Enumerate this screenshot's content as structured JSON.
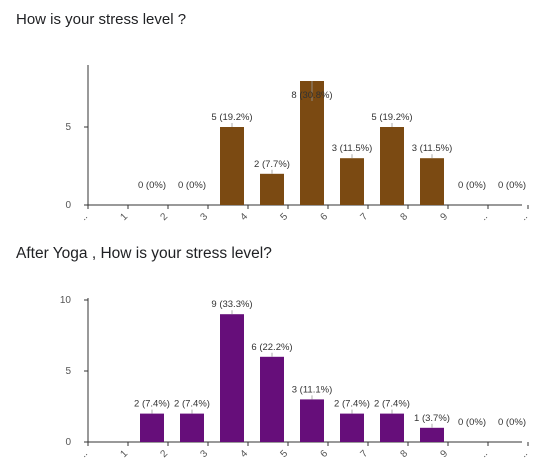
{
  "chart_data": [
    {
      "type": "bar",
      "title": "How is your stress level ?",
      "categories": [
        "..",
        "1",
        "2",
        "3",
        "4",
        "5",
        "6",
        "7",
        "8",
        "9",
        "..",
        ".."
      ],
      "values": [
        null,
        0,
        0,
        5,
        2,
        8,
        3,
        5,
        3,
        0,
        0,
        null
      ],
      "data_labels": [
        null,
        "0 (0%)",
        "0 (0%)",
        "5 (19.2%)",
        "2 (7.7%)",
        "8 (30.8%)",
        "3 (11.5%)",
        "5 (19.2%)",
        "3 (11.5%)",
        "0 (0%)",
        "0 (0%)",
        null
      ],
      "y_ticks": [
        0,
        5
      ],
      "ylim": [
        0,
        8
      ],
      "bar_color": "#7b4a12",
      "grid": false
    },
    {
      "type": "bar",
      "title": "After Yoga , How is your stress level?",
      "categories": [
        "..",
        "1",
        "2",
        "3",
        "4",
        "5",
        "6",
        "7",
        "8",
        "9",
        "..",
        ".."
      ],
      "values": [
        null,
        2,
        2,
        9,
        6,
        3,
        2,
        2,
        1,
        0,
        0,
        null
      ],
      "data_labels": [
        null,
        "2 (7.4%)",
        "2 (7.4%)",
        "9 (33.3%)",
        "6 (22.2%)",
        "3 (11.1%)",
        "2 (7.4%)",
        "2 (7.4%)",
        "1 (3.7%)",
        "0 (0%)",
        "0 (0%)",
        null
      ],
      "y_ticks": [
        0,
        5,
        10
      ],
      "ylim": [
        0,
        9
      ],
      "bar_color": "#660e7a",
      "grid": false
    }
  ]
}
